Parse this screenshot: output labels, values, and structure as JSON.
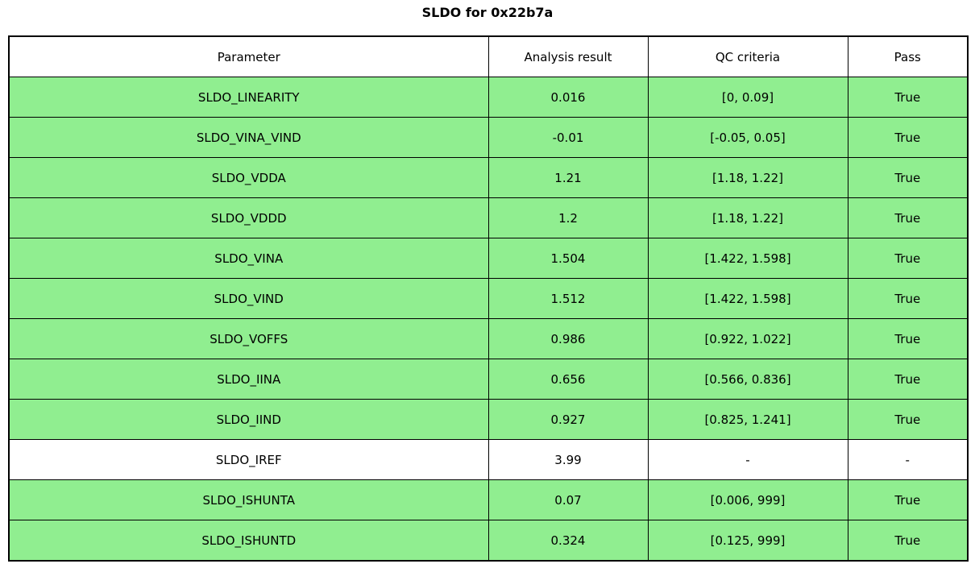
{
  "title": "SLDO for 0x22b7a",
  "colors": {
    "pass_row_background": "#90ee90",
    "neutral_row_background": "#ffffff",
    "border": "#000000"
  },
  "table": {
    "columns": [
      "Parameter",
      "Analysis result",
      "QC criteria",
      "Pass"
    ],
    "rows": [
      {
        "parameter": "SLDO_LINEARITY",
        "result": "0.016",
        "criteria": "[0, 0.09]",
        "pass": "True",
        "highlight": true
      },
      {
        "parameter": "SLDO_VINA_VIND",
        "result": "-0.01",
        "criteria": "[-0.05, 0.05]",
        "pass": "True",
        "highlight": true
      },
      {
        "parameter": "SLDO_VDDA",
        "result": "1.21",
        "criteria": "[1.18, 1.22]",
        "pass": "True",
        "highlight": true
      },
      {
        "parameter": "SLDO_VDDD",
        "result": "1.2",
        "criteria": "[1.18, 1.22]",
        "pass": "True",
        "highlight": true
      },
      {
        "parameter": "SLDO_VINA",
        "result": "1.504",
        "criteria": "[1.422, 1.598]",
        "pass": "True",
        "highlight": true
      },
      {
        "parameter": "SLDO_VIND",
        "result": "1.512",
        "criteria": "[1.422, 1.598]",
        "pass": "True",
        "highlight": true
      },
      {
        "parameter": "SLDO_VOFFS",
        "result": "0.986",
        "criteria": "[0.922, 1.022]",
        "pass": "True",
        "highlight": true
      },
      {
        "parameter": "SLDO_IINA",
        "result": "0.656",
        "criteria": "[0.566, 0.836]",
        "pass": "True",
        "highlight": true
      },
      {
        "parameter": "SLDO_IIND",
        "result": "0.927",
        "criteria": "[0.825, 1.241]",
        "pass": "True",
        "highlight": true
      },
      {
        "parameter": "SLDO_IREF",
        "result": "3.99",
        "criteria": "-",
        "pass": "-",
        "highlight": false
      },
      {
        "parameter": "SLDO_ISHUNTA",
        "result": "0.07",
        "criteria": "[0.006, 999]",
        "pass": "True",
        "highlight": true
      },
      {
        "parameter": "SLDO_ISHUNTD",
        "result": "0.324",
        "criteria": "[0.125, 999]",
        "pass": "True",
        "highlight": true
      }
    ]
  },
  "chart_data": {
    "type": "table",
    "title": "SLDO for 0x22b7a",
    "columns": [
      "Parameter",
      "Analysis result",
      "QC criteria",
      "Pass"
    ],
    "rows": [
      [
        "SLDO_LINEARITY",
        "0.016",
        "[0, 0.09]",
        "True"
      ],
      [
        "SLDO_VINA_VIND",
        "-0.01",
        "[-0.05, 0.05]",
        "True"
      ],
      [
        "SLDO_VDDA",
        "1.21",
        "[1.18, 1.22]",
        "True"
      ],
      [
        "SLDO_VDDD",
        "1.2",
        "[1.18, 1.22]",
        "True"
      ],
      [
        "SLDO_VINA",
        "1.504",
        "[1.422, 1.598]",
        "True"
      ],
      [
        "SLDO_VIND",
        "1.512",
        "[1.422, 1.598]",
        "True"
      ],
      [
        "SLDO_VOFFS",
        "0.986",
        "[0.922, 1.022]",
        "True"
      ],
      [
        "SLDO_IINA",
        "0.656",
        "[0.566, 0.836]",
        "True"
      ],
      [
        "SLDO_IIND",
        "0.927",
        "[0.825, 1.241]",
        "True"
      ],
      [
        "SLDO_IREF",
        "3.99",
        "-",
        "-"
      ],
      [
        "SLDO_ISHUNTA",
        "0.07",
        "[0.006, 999]",
        "True"
      ],
      [
        "SLDO_ISHUNTD",
        "0.324",
        "[0.125, 999]",
        "True"
      ]
    ],
    "row_highlighted_green": [
      true,
      true,
      true,
      true,
      true,
      true,
      true,
      true,
      true,
      false,
      true,
      true
    ],
    "layout": {
      "title_position": "top-center",
      "grid": true,
      "legend": "none"
    }
  }
}
